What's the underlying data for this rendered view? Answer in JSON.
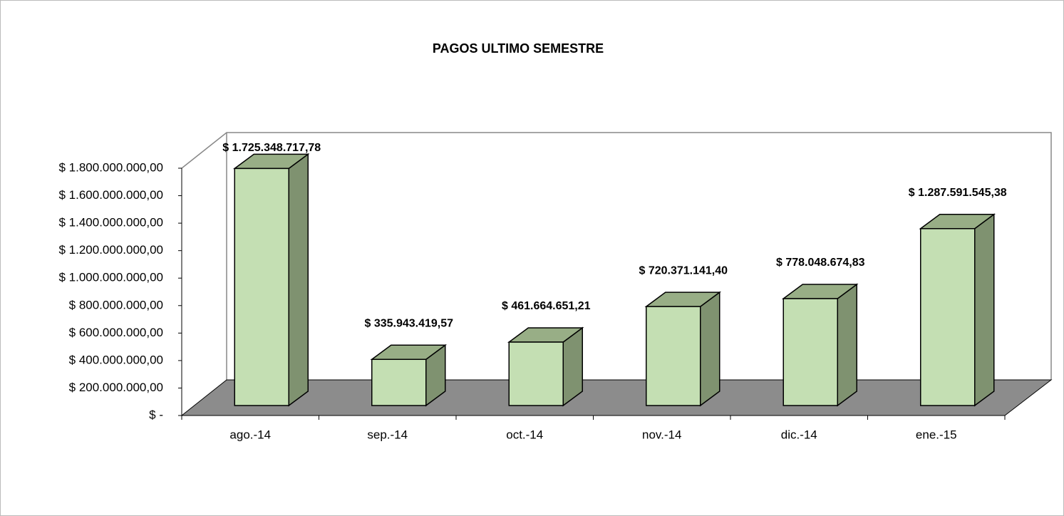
{
  "chart_data": {
    "type": "bar3d",
    "title": "PAGOS ULTIMO SEMESTRE",
    "categories": [
      "ago.-14",
      "sep.-14",
      "oct.-14",
      "nov.-14",
      "dic.-14",
      "ene.-15"
    ],
    "values": [
      1725348717.78,
      335943419.57,
      461664651.21,
      720371141.4,
      778048674.83,
      1287591545.38
    ],
    "value_labels": [
      "$ 1.725.348.717,78",
      "$ 335.943.419,57",
      "$ 461.664.651,21",
      "$ 720.371.141,40",
      "$ 778.048.674,83",
      "$ 1.287.591.545,38"
    ],
    "color": "#c4dfb3",
    "ylim": [
      0,
      1800000000
    ],
    "yticks": [
      {
        "value": 0,
        "label": "$ -"
      },
      {
        "value": 200000000,
        "label": "$ 200.000.000,00"
      },
      {
        "value": 400000000,
        "label": "$ 400.000.000,00"
      },
      {
        "value": 600000000,
        "label": "$ 600.000.000,00"
      },
      {
        "value": 800000000,
        "label": "$ 800.000.000,00"
      },
      {
        "value": 1000000000,
        "label": "$ 1.000.000.000,00"
      },
      {
        "value": 1200000000,
        "label": "$ 1.200.000.000,00"
      },
      {
        "value": 1400000000,
        "label": "$ 1.400.000.000,00"
      },
      {
        "value": 1600000000,
        "label": "$ 1.600.000.000,00"
      },
      {
        "value": 1800000000,
        "label": "$ 1.800.000.000,00"
      }
    ],
    "grid": false
  }
}
